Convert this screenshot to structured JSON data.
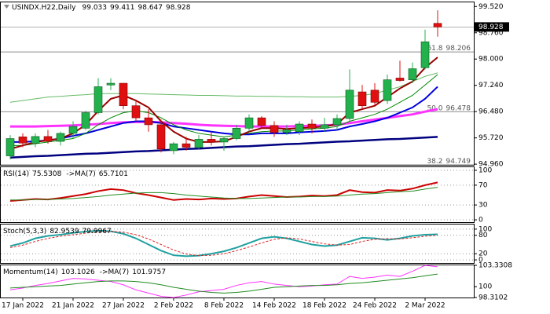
{
  "chart_data": [
    {
      "type": "candlestick",
      "title": "USINDX.H22,Daily",
      "categories": [
        null,
        "17 Jan 2022",
        null,
        null,
        null,
        "21 Jan 2022",
        null,
        null,
        null,
        "27 Jan 2022",
        null,
        null,
        null,
        "2 Feb 2022",
        null,
        null,
        null,
        "8 Feb 2022",
        null,
        null,
        null,
        "14 Feb 2022",
        null,
        null,
        null,
        "18 Feb 2022",
        null,
        null,
        null,
        "24 Feb 2022",
        null,
        null,
        null,
        "2 Mar 2022",
        null
      ],
      "open": [
        95.2,
        95.75,
        95.57,
        95.76,
        95.62,
        95.85,
        96.0,
        96.45,
        97.25,
        97.3,
        96.65,
        96.3,
        96.1,
        95.35,
        95.55,
        95.45,
        95.68,
        95.6,
        95.7,
        96.0,
        96.3,
        96.08,
        95.88,
        95.9,
        96.12,
        96.0,
        96.1,
        96.28,
        97.05,
        97.1,
        96.8,
        97.45,
        97.4,
        97.75,
        99.033
      ],
      "high": [
        95.8,
        95.85,
        95.85,
        95.95,
        95.9,
        96.2,
        96.5,
        97.45,
        97.45,
        97.3,
        96.8,
        96.55,
        96.25,
        95.6,
        95.75,
        95.8,
        95.9,
        95.75,
        96.1,
        96.4,
        96.35,
        96.2,
        96.1,
        96.2,
        96.25,
        96.3,
        96.4,
        97.7,
        97.25,
        97.3,
        97.55,
        97.95,
        97.9,
        98.85,
        99.411
      ],
      "low": [
        95.1,
        95.45,
        95.45,
        95.55,
        95.5,
        95.7,
        95.95,
        96.4,
        97.1,
        96.55,
        96.2,
        95.9,
        95.3,
        95.25,
        95.35,
        95.4,
        95.5,
        95.35,
        95.65,
        95.9,
        96.0,
        95.75,
        95.8,
        95.8,
        95.85,
        95.9,
        95.95,
        96.2,
        96.55,
        96.65,
        96.7,
        97.35,
        97.3,
        97.7,
        98.647
      ],
      "close": [
        95.7,
        95.57,
        95.76,
        95.62,
        95.85,
        96.05,
        96.45,
        97.2,
        97.3,
        96.65,
        96.3,
        96.1,
        95.4,
        95.55,
        95.45,
        95.68,
        95.6,
        95.7,
        96.0,
        96.3,
        96.08,
        95.88,
        95.95,
        96.12,
        96.0,
        96.1,
        96.28,
        97.1,
        96.65,
        96.75,
        97.4,
        97.38,
        97.72,
        98.5,
        98.928
      ],
      "up_color": "#22b14c",
      "down_color": "#e01010",
      "lines": [
        {
          "color": "#66bb66",
          "width": 1,
          "values": [
            96.75,
            96.8,
            96.85,
            96.9,
            96.92,
            96.95,
            96.97,
            97.0,
            97.0,
            97.0,
            97.0,
            96.99,
            96.98,
            96.97,
            96.96,
            96.95,
            96.95,
            96.94,
            96.93,
            96.93,
            96.92,
            96.92,
            96.91,
            96.91,
            96.9,
            96.9,
            96.9,
            96.92,
            96.95,
            97.0,
            97.1,
            97.2,
            97.35,
            97.5,
            97.6
          ]
        },
        {
          "color": "#ff33ff",
          "width": 3,
          "values": [
            96.05,
            96.05,
            96.05,
            96.06,
            96.07,
            96.08,
            96.1,
            96.12,
            96.15,
            96.17,
            96.18,
            96.18,
            96.17,
            96.15,
            96.13,
            96.1,
            96.08,
            96.07,
            96.06,
            96.05,
            96.05,
            96.05,
            96.05,
            96.06,
            96.07,
            96.08,
            96.1,
            96.15,
            96.2,
            96.25,
            96.3,
            96.35,
            96.4,
            96.48,
            96.55
          ]
        },
        {
          "color": "#000080",
          "width": 2.5,
          "values": [
            95.15,
            95.17,
            95.19,
            95.2,
            95.22,
            95.24,
            95.26,
            95.27,
            95.29,
            95.31,
            95.33,
            95.34,
            95.36,
            95.38,
            95.4,
            95.41,
            95.43,
            95.45,
            95.47,
            95.48,
            95.5,
            95.52,
            95.54,
            95.55,
            95.57,
            95.59,
            95.61,
            95.62,
            95.64,
            95.66,
            95.68,
            95.69,
            95.71,
            95.73,
            95.75
          ]
        },
        {
          "color": "#0000dd",
          "width": 2,
          "values": [
            95.6,
            95.6,
            95.62,
            95.65,
            95.7,
            95.78,
            95.85,
            95.95,
            96.05,
            96.15,
            96.2,
            96.2,
            96.15,
            96.05,
            96.0,
            95.95,
            95.9,
            95.85,
            95.82,
            95.82,
            95.85,
            95.85,
            95.85,
            95.88,
            95.9,
            95.92,
            95.95,
            96.05,
            96.12,
            96.2,
            96.3,
            96.45,
            96.6,
            96.85,
            97.2
          ]
        },
        {
          "color": "#008800",
          "width": 1,
          "values": [
            95.5,
            95.5,
            95.55,
            95.6,
            95.65,
            95.7,
            95.85,
            96.1,
            96.3,
            96.45,
            96.5,
            96.45,
            96.3,
            96.1,
            95.95,
            95.85,
            95.8,
            95.75,
            95.8,
            95.85,
            95.9,
            95.92,
            95.92,
            95.95,
            95.98,
            96.0,
            96.05,
            96.2,
            96.3,
            96.4,
            96.55,
            96.75,
            96.95,
            97.25,
            97.55
          ]
        },
        {
          "color": "#990000",
          "width": 2,
          "values": [
            95.4,
            95.5,
            95.6,
            95.65,
            95.7,
            95.85,
            96.1,
            96.5,
            96.85,
            96.95,
            96.8,
            96.6,
            96.2,
            95.9,
            95.7,
            95.6,
            95.6,
            95.62,
            95.75,
            95.9,
            96.0,
            96.0,
            95.98,
            96.0,
            96.02,
            96.05,
            96.12,
            96.45,
            96.55,
            96.65,
            96.9,
            97.15,
            97.35,
            97.75,
            98.05
          ]
        }
      ],
      "fib_levels": [
        {
          "label": "61.8",
          "value": 98.206
        },
        {
          "label": "50.0",
          "value": 96.478
        },
        {
          "label": "38.2",
          "value": 94.749
        }
      ],
      "ylim": [
        94.94,
        99.64
      ],
      "yticks": [
        {
          "value": 99.52,
          "label": "99.520"
        },
        {
          "value": 98.76,
          "label": "98.760"
        },
        {
          "value": 98.0,
          "label": "98.000"
        },
        {
          "value": 97.24,
          "label": "97.240"
        },
        {
          "value": 96.48,
          "label": "96.480"
        },
        {
          "value": 95.72,
          "label": "95.720"
        },
        {
          "value": 94.96,
          "label": "94.960"
        }
      ],
      "grid": false
    },
    {
      "type": "line",
      "series": [
        {
          "name": "RSI(14)",
          "color": "#cc0000",
          "width": 2,
          "values": [
            38,
            40,
            42,
            41,
            44,
            48,
            52,
            58,
            62,
            60,
            54,
            50,
            45,
            40,
            42,
            41,
            43,
            42,
            43,
            47,
            50,
            48,
            46,
            47,
            49,
            48,
            50,
            60,
            56,
            55,
            60,
            59,
            63,
            70,
            75.5308
          ]
        },
        {
          "name": "->MA(7)",
          "color": "#228b22",
          "width": 1,
          "values": [
            40,
            40,
            41,
            41,
            42,
            43,
            45,
            47,
            50,
            52,
            54,
            55,
            55,
            53,
            50,
            48,
            46,
            44,
            43,
            43,
            44,
            45,
            46,
            46,
            47,
            47,
            48,
            50,
            52,
            53,
            55,
            57,
            58,
            62,
            65.7101
          ]
        }
      ],
      "ylim": [
        -4.7,
        106.25
      ],
      "yticks": [
        100,
        70,
        30,
        0
      ],
      "grid": true
    },
    {
      "type": "line",
      "series": [
        {
          "name": "Stoch(5,3,3)",
          "color": "#20a0a0",
          "width": 2,
          "values": [
            45,
            55,
            70,
            78,
            82,
            88,
            92,
            95,
            93,
            85,
            70,
            50,
            30,
            15,
            12,
            14,
            20,
            28,
            40,
            55,
            70,
            75,
            70,
            60,
            50,
            45,
            48,
            60,
            72,
            70,
            65,
            70,
            78,
            82,
            82.9539
          ]
        },
        {
          "color": "#dd2222",
          "width": 1,
          "dashed": true,
          "values": [
            40,
            48,
            60,
            70,
            77,
            82,
            87,
            91,
            93,
            90,
            82,
            68,
            50,
            32,
            19,
            14,
            15,
            20,
            30,
            42,
            55,
            67,
            72,
            68,
            60,
            52,
            48,
            50,
            60,
            67,
            69,
            68,
            72,
            77,
            79.9967
          ]
        }
      ],
      "ylim": [
        -10,
        115
      ],
      "yticks": [
        100,
        80,
        20,
        0
      ],
      "grid": true
    },
    {
      "type": "line",
      "series": [
        {
          "name": "Momentum(14)",
          "color": "#ff33ff",
          "width": 1,
          "values": [
            99.5,
            99.8,
            100.2,
            100.5,
            100.9,
            101.3,
            101.2,
            101.0,
            100.8,
            100.3,
            99.5,
            99.0,
            98.5,
            98.3102,
            98.7,
            99.2,
            99.4,
            99.6,
            100.2,
            100.6,
            100.8,
            100.4,
            100.2,
            100.0,
            100.1,
            100.3,
            100.4,
            101.6,
            101.3,
            101.5,
            101.8,
            101.6,
            102.4,
            103.3308,
            103.1026
          ]
        },
        {
          "name": "->MA(7)",
          "color": "#228b22",
          "width": 1,
          "values": [
            99.8,
            99.9,
            100.0,
            100.1,
            100.2,
            100.4,
            100.6,
            100.8,
            100.9,
            100.9,
            100.8,
            100.6,
            100.3,
            99.9,
            99.6,
            99.3,
            99.1,
            99.0,
            99.1,
            99.3,
            99.6,
            99.9,
            100.0,
            100.1,
            100.2,
            100.2,
            100.3,
            100.5,
            100.6,
            100.8,
            101.0,
            101.2,
            101.4,
            101.7,
            101.9757
          ]
        }
      ],
      "ylim": [
        98.3102,
        103.3308
      ],
      "yticks": [
        103.3308,
        100,
        98.3102
      ],
      "grid": false
    }
  ]
}
